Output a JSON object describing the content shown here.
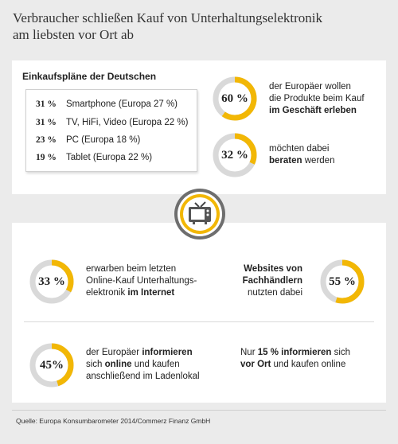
{
  "title_line1": "Verbraucher schließen Kauf von Unterhaltungselektronik",
  "title_line2": "am liebsten vor Ort ab",
  "plans_title": "Einkaufspläne der Deutschen",
  "plans": [
    {
      "pct": "31 %",
      "label": "Smartphone (Europa 27 %)"
    },
    {
      "pct": "31 %",
      "label": "TV, HiFi, Video (Europa 22 %)"
    },
    {
      "pct": "23 %",
      "label": "PC (Europa 18 %)"
    },
    {
      "pct": "19 %",
      "label": "Tablet (Europa 22 %)"
    }
  ],
  "stats": {
    "s60": {
      "value": "60 %",
      "fraction": 0.6,
      "line1": "der Europäer wollen",
      "line2": "die Produkte beim Kauf",
      "line3_bold": "im Geschäft erleben"
    },
    "s32": {
      "value": "32 %",
      "fraction": 0.32,
      "line1": "möchten dabei",
      "line2_bold": "beraten",
      "line2_rest": " werden"
    },
    "s33": {
      "value": "33 %",
      "fraction": 0.33,
      "line1": "erwarben beim letzten",
      "line2": "Online-Kauf Unterhaltungs-",
      "line3_pre": "elektronik ",
      "line3_bold": "im Internet"
    },
    "s55": {
      "value": "55 %",
      "fraction": 0.55,
      "line1_bold": "Websites von",
      "line2_bold": "Fachhändlern",
      "line3": "nutzten dabei"
    },
    "s45": {
      "value": "45%",
      "fraction": 0.45,
      "line1_pre": "der Europäer ",
      "line1_bold": "informieren",
      "line2_pre": "sich ",
      "line2_bold": "online",
      "line2_rest": " und kaufen",
      "line3": "anschließend im Ladenlokal"
    },
    "s15": {
      "line1_pre": "Nur ",
      "line1_bold": "15 % informieren",
      "line1_rest": " sich",
      "line2_bold": "vor Ort",
      "line2_rest": " und kaufen online"
    }
  },
  "source": "Quelle: Europa Konsumbarometer 2014/Commerz Finanz GmbH",
  "colors": {
    "accent": "#f2b705",
    "track": "#d9d9d9",
    "background": "#ebebeb"
  },
  "center_icon": "tv-icon"
}
